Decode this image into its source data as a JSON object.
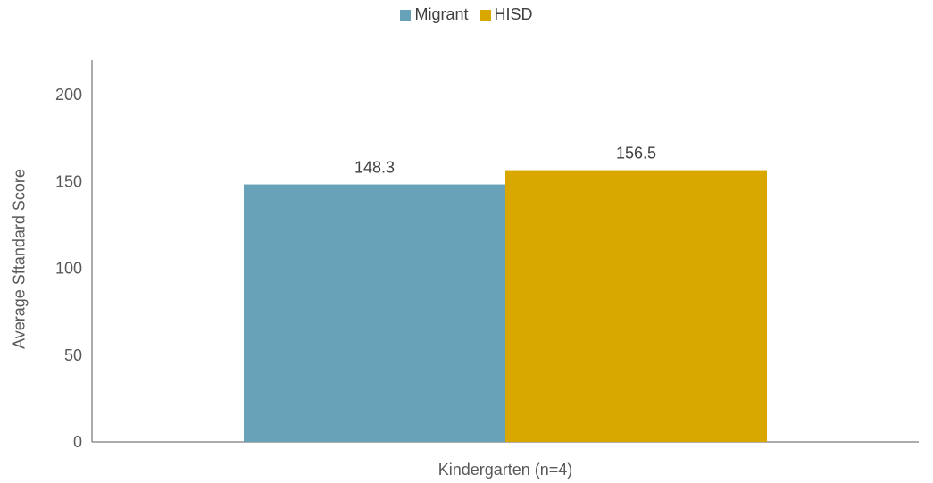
{
  "chart_data": {
    "type": "bar",
    "categories": [
      "Kindergarten (n=4)"
    ],
    "series": [
      {
        "name": "Migrant",
        "values": [
          148.3
        ],
        "color": "#68A2B9"
      },
      {
        "name": "HISD",
        "values": [
          156.5
        ],
        "color": "#D9A800"
      }
    ],
    "ylabel": "Average Sftandard Score",
    "ylim": [
      0,
      200
    ],
    "yticks": [
      0,
      50,
      100,
      150,
      200
    ],
    "grid": false,
    "legend": "top-center",
    "data_labels": [
      "148.3",
      "156.5"
    ]
  }
}
